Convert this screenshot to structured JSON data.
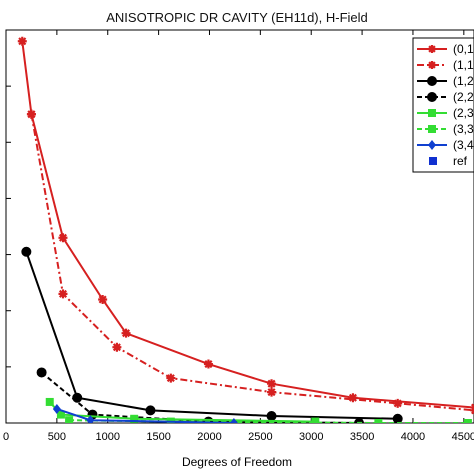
{
  "chart_data": {
    "type": "line",
    "title": "ANISOTROPIC DR CAVITY (EH11d), H-Field",
    "xlabel": "Degrees of Freedom",
    "ylabel": "",
    "xlim": [
      0,
      4600
    ],
    "ylim": [
      0,
      14
    ],
    "xticks": [
      0,
      500,
      1000,
      1500,
      2000,
      2500,
      3000,
      3500,
      4000,
      4500
    ],
    "xtick_labels": [
      "0",
      "500",
      "1000",
      "1500",
      "2000",
      "2500",
      "3000",
      "3500",
      "4000",
      "4500"
    ],
    "grid": false,
    "legend_position": "top-right",
    "legend_entries": [
      "(0,1",
      "(1,1",
      "(1,2",
      "(2,2",
      "(2,3",
      "(3,3",
      "(3,4",
      "ref"
    ],
    "series": [
      {
        "name": "(0,1",
        "color": "#d62020",
        "line": "solid",
        "marker": "star",
        "x": [
          160,
          250,
          560,
          950,
          1180,
          1990,
          2610,
          3410,
          4610
        ],
        "y": [
          13.6,
          11.0,
          6.6,
          4.4,
          3.2,
          2.1,
          1.4,
          0.9,
          0.55
        ]
      },
      {
        "name": "(1,1",
        "color": "#d62020",
        "line": "dashdot",
        "marker": "star",
        "x": [
          250,
          560,
          1090,
          1620,
          2610,
          3850,
          4610
        ],
        "y": [
          11.0,
          4.6,
          2.7,
          1.6,
          1.1,
          0.7,
          0.45
        ]
      },
      {
        "name": "(1,2",
        "color": "#000000",
        "line": "solid",
        "marker": "circle",
        "x": [
          200,
          700,
          1420,
          2610,
          3850
        ],
        "y": [
          6.1,
          0.9,
          0.45,
          0.25,
          0.15
        ]
      },
      {
        "name": "(2,2",
        "color": "#000000",
        "line": "dashed",
        "marker": "circle",
        "x": [
          350,
          850,
          1990,
          3470
        ],
        "y": [
          1.8,
          0.3,
          0.05,
          0.0
        ]
      },
      {
        "name": "(2,3",
        "color": "#33dd33",
        "line": "solid",
        "marker": "square",
        "x": [
          430,
          540,
          1260,
          3040
        ],
        "y": [
          0.75,
          0.3,
          0.15,
          0.05
        ]
      },
      {
        "name": "(3,3",
        "color": "#33dd33",
        "line": "dashed",
        "marker": "square",
        "x": [
          620,
          1620,
          3660,
          4540
        ],
        "y": [
          0.1,
          0.05,
          0.0,
          0.0
        ]
      },
      {
        "name": "(3,4",
        "color": "#1040d0",
        "line": "solid",
        "marker": "diamond",
        "x": [
          500,
          830,
          2240
        ],
        "y": [
          0.5,
          0.1,
          0.0
        ]
      }
    ]
  }
}
